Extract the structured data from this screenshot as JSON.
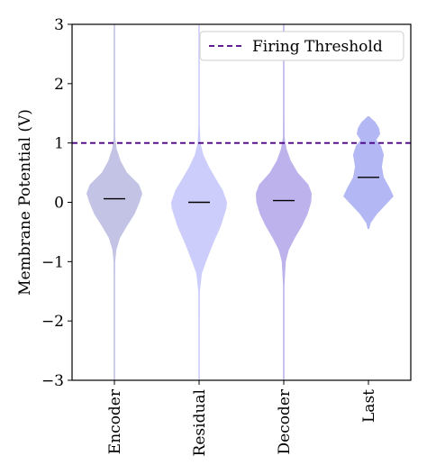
{
  "chart_data": {
    "type": "violin",
    "ylabel": "Membrane Potential (V)",
    "ylim": [
      -3,
      3
    ],
    "yticks": [
      -3,
      -2,
      -1,
      0,
      1,
      2,
      3
    ],
    "ytick_labels": [
      "−3",
      "−2",
      "−1",
      "0",
      "1",
      "2",
      "3"
    ],
    "categories": [
      "Encoder",
      "Residual",
      "Decoder",
      "Last"
    ],
    "threshold": {
      "label": "Firing Threshold",
      "value": 1.0,
      "color": "#4b0082"
    },
    "legend_position": "top-right",
    "grid": false,
    "series": [
      {
        "category": "Encoder",
        "color": "#b8b8e0",
        "median": 0.06,
        "min": -3.0,
        "max": 3.0,
        "profile": [
          [
            -3.0,
            0.003
          ],
          [
            -2.0,
            0.006
          ],
          [
            -1.3,
            0.012
          ],
          [
            -1.0,
            0.03
          ],
          [
            -0.8,
            0.07
          ],
          [
            -0.6,
            0.2
          ],
          [
            -0.4,
            0.45
          ],
          [
            -0.2,
            0.72
          ],
          [
            0.0,
            0.9
          ],
          [
            0.15,
            1.0
          ],
          [
            0.3,
            0.88
          ],
          [
            0.5,
            0.45
          ],
          [
            0.7,
            0.22
          ],
          [
            0.9,
            0.08
          ],
          [
            1.1,
            0.03
          ],
          [
            1.5,
            0.012
          ],
          [
            2.0,
            0.008
          ],
          [
            3.0,
            0.003
          ]
        ]
      },
      {
        "category": "Residual",
        "color": "#c4c4fa",
        "median": 0.0,
        "min": -3.0,
        "max": 3.0,
        "profile": [
          [
            -3.0,
            0.003
          ],
          [
            -2.0,
            0.008
          ],
          [
            -1.5,
            0.03
          ],
          [
            -1.2,
            0.1
          ],
          [
            -1.0,
            0.25
          ],
          [
            -0.7,
            0.5
          ],
          [
            -0.4,
            0.78
          ],
          [
            -0.1,
            0.98
          ],
          [
            0.0,
            1.0
          ],
          [
            0.2,
            0.85
          ],
          [
            0.4,
            0.6
          ],
          [
            0.6,
            0.35
          ],
          [
            0.8,
            0.15
          ],
          [
            1.0,
            0.05
          ],
          [
            1.3,
            0.015
          ],
          [
            2.0,
            0.008
          ],
          [
            3.0,
            0.003
          ]
        ]
      },
      {
        "category": "Decoder",
        "color": "#b2a4e8",
        "median": 0.03,
        "min": -3.0,
        "max": 3.0,
        "profile": [
          [
            -3.0,
            0.003
          ],
          [
            -2.0,
            0.006
          ],
          [
            -1.4,
            0.02
          ],
          [
            -1.0,
            0.07
          ],
          [
            -0.8,
            0.18
          ],
          [
            -0.6,
            0.4
          ],
          [
            -0.4,
            0.65
          ],
          [
            -0.2,
            0.85
          ],
          [
            0.0,
            0.98
          ],
          [
            0.15,
            1.0
          ],
          [
            0.3,
            0.88
          ],
          [
            0.5,
            0.5
          ],
          [
            0.7,
            0.25
          ],
          [
            0.9,
            0.1
          ],
          [
            1.1,
            0.03
          ],
          [
            1.5,
            0.012
          ],
          [
            2.0,
            0.008
          ],
          [
            3.0,
            0.003
          ]
        ]
      },
      {
        "category": "Last",
        "color": "#a6aaf2",
        "median": 0.42,
        "min": -0.45,
        "max": 1.45,
        "profile": [
          [
            -0.45,
            0.0
          ],
          [
            -0.35,
            0.08
          ],
          [
            -0.2,
            0.3
          ],
          [
            0.0,
            0.7
          ],
          [
            0.1,
            0.9
          ],
          [
            0.25,
            0.75
          ],
          [
            0.42,
            0.55
          ],
          [
            0.6,
            0.48
          ],
          [
            0.8,
            0.55
          ],
          [
            0.95,
            0.45
          ],
          [
            1.05,
            0.28
          ],
          [
            1.15,
            0.42
          ],
          [
            1.25,
            0.38
          ],
          [
            1.35,
            0.25
          ],
          [
            1.45,
            0.0
          ]
        ]
      }
    ]
  }
}
